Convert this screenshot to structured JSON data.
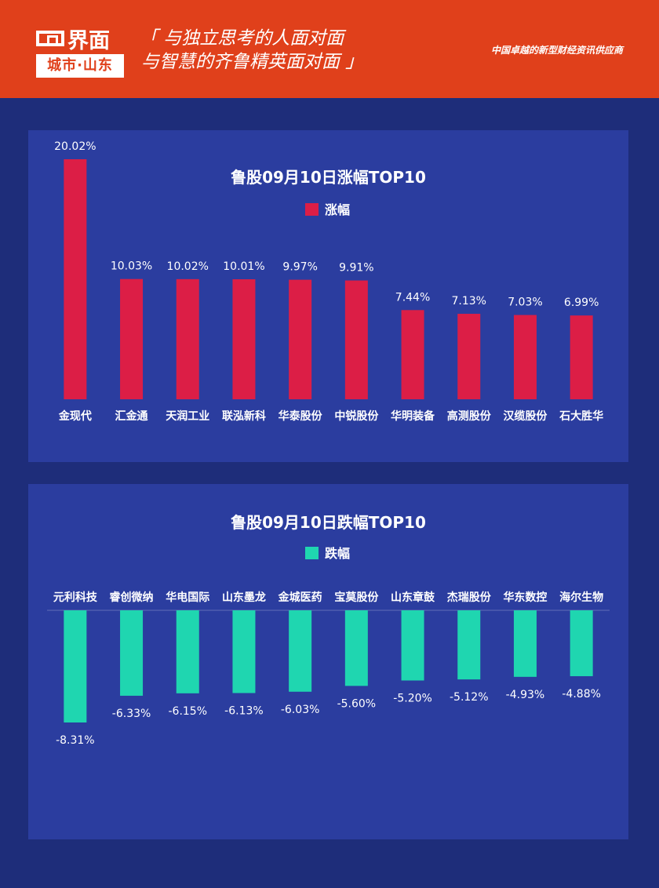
{
  "header": {
    "logo_top": "界面",
    "logo_bottom": "城市·山东",
    "slogan_line1": "「 与独立思考的人面对面",
    "slogan_line2": "与智慧的齐鲁精英面对面 」",
    "tagline": "中国卓越的新型财经资讯供应商"
  },
  "colors": {
    "header_bg": "#e0401b",
    "page_bg": "#1e2d7a",
    "panel_bg": "#2b3d9f",
    "gain": "#dc1e46",
    "loss": "#1fd6b0"
  },
  "chart_data": [
    {
      "type": "bar",
      "title": "鲁股09月10日涨幅TOP10",
      "legend": "top",
      "series": [
        {
          "name": "涨幅",
          "values": [
            20.02,
            10.03,
            10.02,
            10.01,
            9.97,
            9.91,
            7.44,
            7.13,
            7.03,
            6.99
          ]
        }
      ],
      "categories": [
        "金现代",
        "汇金通",
        "天润工业",
        "联泓新科",
        "华泰股份",
        "中锐股份",
        "华明装备",
        "高测股份",
        "汉缆股份",
        "石大胜华"
      ],
      "labels": [
        "20.02%",
        "10.03%",
        "10.02%",
        "10.01%",
        "9.97%",
        "9.91%",
        "7.44%",
        "7.13%",
        "7.03%",
        "6.99%"
      ],
      "ylim": [
        0,
        20.02
      ],
      "grid": false
    },
    {
      "type": "bar",
      "title": "鲁股09月10日跌幅TOP10",
      "legend": "top",
      "series": [
        {
          "name": "跌幅",
          "values": [
            -8.31,
            -6.33,
            -6.15,
            -6.13,
            -6.03,
            -5.6,
            -5.2,
            -5.12,
            -4.93,
            -4.88
          ]
        }
      ],
      "categories": [
        "元利科技",
        "睿创微纳",
        "华电国际",
        "山东墨龙",
        "金城医药",
        "宝莫股份",
        "山东章鼓",
        "杰瑞股份",
        "华东数控",
        "海尔生物"
      ],
      "labels": [
        "-8.31%",
        "-6.33%",
        "-6.15%",
        "-6.13%",
        "-6.03%",
        "-5.60%",
        "-5.20%",
        "-5.12%",
        "-4.93%",
        "-4.88%"
      ],
      "ylim": [
        -8.31,
        0
      ],
      "grid": false
    }
  ]
}
